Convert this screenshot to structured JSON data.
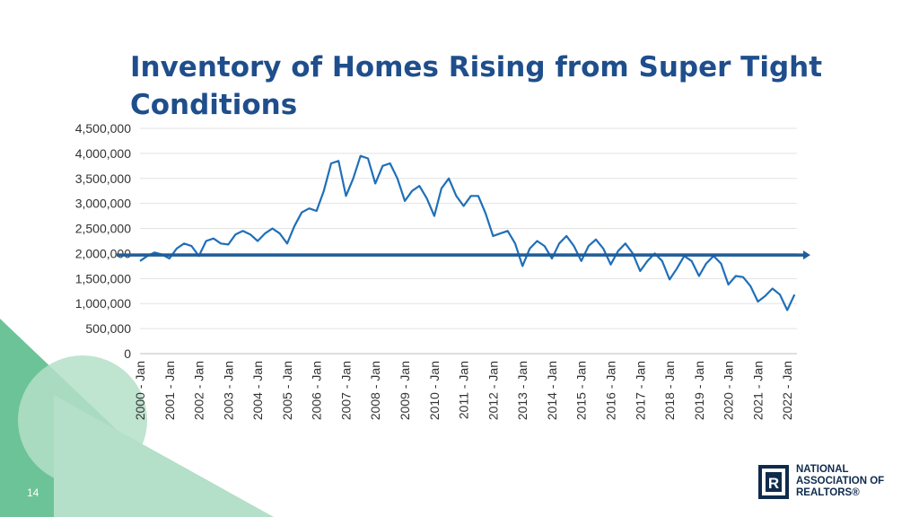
{
  "slide": {
    "title": "Inventory of Homes Rising from Super Tight Conditions",
    "page_number": "14"
  },
  "logo": {
    "line1": "NATIONAL",
    "line2": "ASSOCIATION OF",
    "line3": "REALTORS®",
    "mark": "R",
    "icon": "realtor-r-logo-icon"
  },
  "colors": {
    "title": "#1f4e8c",
    "series": "#1f6fb8",
    "reference_line": "#1f5c99",
    "deco_dark": "#6cc397",
    "deco_light": "#b4dfc8",
    "logo_navy": "#0f2b4d"
  },
  "chart_data": {
    "type": "line",
    "title": "",
    "xlabel": "",
    "ylabel": "",
    "ylim": [
      0,
      4500000
    ],
    "yticks": [
      0,
      500000,
      1000000,
      1500000,
      2000000,
      2500000,
      3000000,
      3500000,
      4000000,
      4500000
    ],
    "ytick_labels": [
      "0",
      "500,000",
      "1,000,000",
      "1,500,000",
      "2,000,000",
      "2,500,000",
      "3,000,000",
      "3,500,000",
      "4,000,000",
      "4,500,000"
    ],
    "xtick_labels": [
      "2000 - Jan",
      "2001 - Jan",
      "2002 - Jan",
      "2003 - Jan",
      "2004 - Jan",
      "2005 - Jan",
      "2006 - Jan",
      "2007 - Jan",
      "2008 - Jan",
      "2009 - Jan",
      "2010 - Jan",
      "2011 - Jan",
      "2012 - Jan",
      "2013 - Jan",
      "2014 - Jan",
      "2015 - Jan",
      "2016 - Jan",
      "2017 - Jan",
      "2018 - Jan",
      "2019 - Jan",
      "2020 - Jan",
      "2021 - Jan",
      "2022 - Jan"
    ],
    "grid": "horizontal",
    "legend": "none",
    "reference_line": 1970000,
    "series": [
      {
        "x": [
          "2000-01",
          "2000-04",
          "2000-07",
          "2000-10",
          "2001-01",
          "2001-04",
          "2001-07",
          "2001-10",
          "2002-01",
          "2002-04",
          "2002-07",
          "2002-10",
          "2003-01",
          "2003-04",
          "2003-07",
          "2003-10",
          "2004-01",
          "2004-04",
          "2004-07",
          "2004-10",
          "2005-01",
          "2005-04",
          "2005-07",
          "2005-10",
          "2006-01",
          "2006-04",
          "2006-07",
          "2006-10",
          "2007-01",
          "2007-04",
          "2007-07",
          "2007-10",
          "2008-01",
          "2008-04",
          "2008-07",
          "2008-10",
          "2009-01",
          "2009-04",
          "2009-07",
          "2009-10",
          "2010-01",
          "2010-04",
          "2010-07",
          "2010-10",
          "2011-01",
          "2011-04",
          "2011-07",
          "2011-10",
          "2012-01",
          "2012-04",
          "2012-07",
          "2012-10",
          "2013-01",
          "2013-04",
          "2013-07",
          "2013-10",
          "2014-01",
          "2014-04",
          "2014-07",
          "2014-10",
          "2015-01",
          "2015-04",
          "2015-07",
          "2015-10",
          "2016-01",
          "2016-04",
          "2016-07",
          "2016-10",
          "2017-01",
          "2017-04",
          "2017-07",
          "2017-10",
          "2018-01",
          "2018-04",
          "2018-07",
          "2018-10",
          "2019-01",
          "2019-04",
          "2019-07",
          "2019-10",
          "2020-01",
          "2020-04",
          "2020-07",
          "2020-10",
          "2021-01",
          "2021-04",
          "2021-07",
          "2021-10",
          "2022-01",
          "2022-04"
        ],
        "values": [
          1850000,
          1950000,
          2020000,
          1980000,
          1900000,
          2100000,
          2200000,
          2150000,
          1950000,
          2250000,
          2300000,
          2200000,
          2180000,
          2380000,
          2450000,
          2380000,
          2250000,
          2400000,
          2500000,
          2400000,
          2200000,
          2550000,
          2820000,
          2900000,
          2850000,
          3250000,
          3800000,
          3850000,
          3150000,
          3500000,
          3950000,
          3900000,
          3400000,
          3750000,
          3800000,
          3500000,
          3050000,
          3250000,
          3350000,
          3100000,
          2750000,
          3300000,
          3500000,
          3150000,
          2950000,
          3150000,
          3150000,
          2800000,
          2350000,
          2400000,
          2450000,
          2200000,
          1750000,
          2100000,
          2250000,
          2150000,
          1900000,
          2200000,
          2350000,
          2150000,
          1850000,
          2150000,
          2280000,
          2100000,
          1780000,
          2050000,
          2200000,
          2000000,
          1650000,
          1850000,
          2000000,
          1850000,
          1480000,
          1700000,
          1950000,
          1850000,
          1550000,
          1800000,
          1950000,
          1800000,
          1380000,
          1550000,
          1530000,
          1350000,
          1040000,
          1150000,
          1300000,
          1180000,
          870000,
          1180000
        ]
      }
    ]
  }
}
